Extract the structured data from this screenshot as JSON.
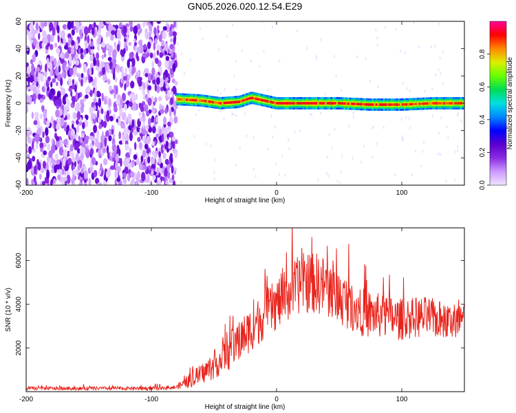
{
  "figure_title": "GN05.2026.020.12.54.E29",
  "chart_data": [
    {
      "type": "heatmap",
      "title": "GN05.2026.020.12.54.E29",
      "xlabel": "Height of straight line (km)",
      "ylabel": "Frequency (Hz)",
      "xlim": [
        -200,
        150
      ],
      "ylim": [
        -60,
        60
      ],
      "xticks": [
        -200,
        -100,
        0,
        100
      ],
      "yticks": [
        60,
        40,
        20,
        0,
        -20,
        -40,
        -60
      ],
      "colorbar": {
        "label": "Normalized spectral amplitude",
        "range": [
          0,
          1
        ],
        "ticks": [
          0.0,
          0.2,
          0.4,
          0.6,
          0.8
        ],
        "colors": [
          "#f0e4ff",
          "#cc99ff",
          "#8a2be2",
          "#5a00d0",
          "#0000ff",
          "#0088ff",
          "#00e0e0",
          "#00dd55",
          "#66ff00",
          "#ddee00",
          "#ff8800",
          "#ff0000",
          "#ff0099"
        ]
      },
      "regions": {
        "noise_region_x": [
          -200,
          -80
        ],
        "noise_amplitude": "0.05 to 0.25",
        "signal_band_x": [
          -80,
          150
        ],
        "signal_center_hz": [
          {
            "x": -80,
            "y": 3
          },
          {
            "x": -60,
            "y": 2
          },
          {
            "x": -45,
            "y": 0
          },
          {
            "x": -30,
            "y": 1
          },
          {
            "x": -20,
            "y": 4
          },
          {
            "x": -10,
            "y": 2
          },
          {
            "x": 0,
            "y": 0
          },
          {
            "x": 25,
            "y": 0
          },
          {
            "x": 50,
            "y": 0
          },
          {
            "x": 75,
            "y": -1
          },
          {
            "x": 100,
            "y": -1
          },
          {
            "x": 125,
            "y": 0
          },
          {
            "x": 150,
            "y": 0
          }
        ],
        "signal_peak_amplitude": 0.95
      }
    },
    {
      "type": "line",
      "xlabel": "Height of straight line (km)",
      "ylabel": "SNR (10 * v/v)",
      "xlim": [
        -200,
        150
      ],
      "ylim": [
        0,
        7500
      ],
      "xticks": [
        -200,
        -100,
        0,
        100
      ],
      "yticks": [
        2000,
        4000,
        6000
      ],
      "series": [
        {
          "name": "SNR",
          "color": "#e8231b",
          "envelope": [
            {
              "x": -200,
              "mean": 150,
              "spread": 100
            },
            {
              "x": -150,
              "mean": 150,
              "spread": 100
            },
            {
              "x": -100,
              "mean": 150,
              "spread": 100
            },
            {
              "x": -80,
              "mean": 200,
              "spread": 120
            },
            {
              "x": -70,
              "mean": 500,
              "spread": 400
            },
            {
              "x": -60,
              "mean": 800,
              "spread": 600
            },
            {
              "x": -50,
              "mean": 1200,
              "spread": 800
            },
            {
              "x": -40,
              "mean": 1700,
              "spread": 1000
            },
            {
              "x": -30,
              "mean": 2300,
              "spread": 1200
            },
            {
              "x": -20,
              "mean": 2900,
              "spread": 1300
            },
            {
              "x": -10,
              "mean": 3500,
              "spread": 1400
            },
            {
              "x": 0,
              "mean": 4000,
              "spread": 1500
            },
            {
              "x": 10,
              "mean": 4500,
              "spread": 1600
            },
            {
              "x": 20,
              "mean": 5000,
              "spread": 1700
            },
            {
              "x": 30,
              "mean": 5000,
              "spread": 1800
            },
            {
              "x": 40,
              "mean": 4800,
              "spread": 1700
            },
            {
              "x": 50,
              "mean": 4300,
              "spread": 1600
            },
            {
              "x": 60,
              "mean": 4000,
              "spread": 1500
            },
            {
              "x": 70,
              "mean": 3600,
              "spread": 1400
            },
            {
              "x": 80,
              "mean": 3500,
              "spread": 1300
            },
            {
              "x": 90,
              "mean": 3400,
              "spread": 1300
            },
            {
              "x": 100,
              "mean": 3300,
              "spread": 1200
            },
            {
              "x": 110,
              "mean": 3400,
              "spread": 1200
            },
            {
              "x": 120,
              "mean": 3400,
              "spread": 1200
            },
            {
              "x": 130,
              "mean": 3300,
              "spread": 1100
            },
            {
              "x": 140,
              "mean": 3200,
              "spread": 1100
            },
            {
              "x": 150,
              "mean": 3300,
              "spread": 1100
            }
          ]
        }
      ]
    }
  ]
}
